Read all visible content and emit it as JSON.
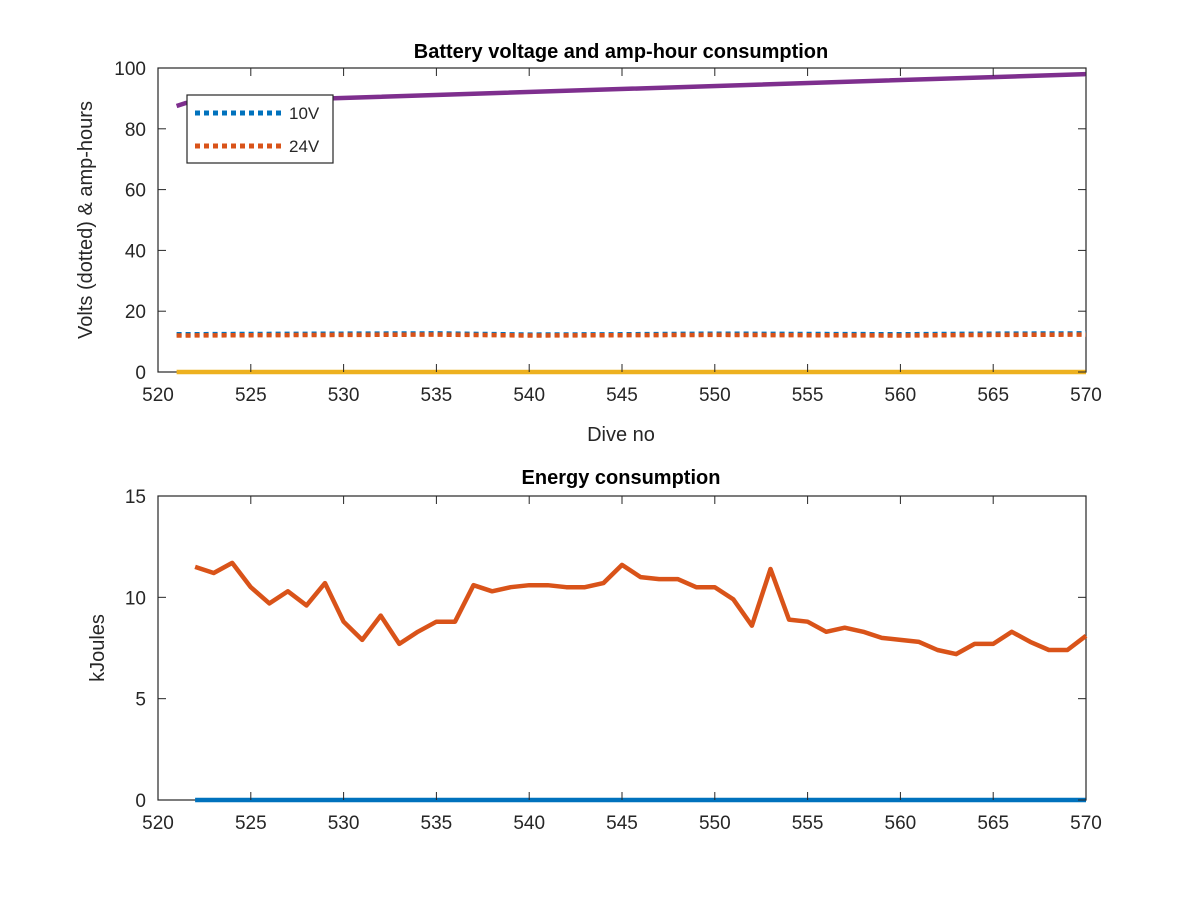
{
  "chart_data": [
    {
      "type": "line",
      "title": "Battery voltage and amp-hour consumption",
      "xlabel": "Dive no",
      "ylabel": "Volts (dotted) & amp-hours",
      "xlim": [
        520,
        570
      ],
      "ylim": [
        0,
        100
      ],
      "xticks": [
        520,
        525,
        530,
        535,
        540,
        545,
        550,
        555,
        560,
        565,
        570
      ],
      "yticks": [
        0,
        20,
        40,
        60,
        80,
        100
      ],
      "grid": false,
      "legend": {
        "placement": "top-left",
        "entries": [
          "10V",
          "24V"
        ]
      },
      "series": [
        {
          "name": "10V",
          "style": "dotted",
          "color": "#0072BD",
          "x": [
            521,
            525,
            530,
            535,
            540,
            545,
            550,
            555,
            560,
            565,
            570
          ],
          "y": [
            12.4,
            12.5,
            12.6,
            12.7,
            12.3,
            12.4,
            12.6,
            12.5,
            12.4,
            12.6,
            12.7
          ]
        },
        {
          "name": "24V",
          "style": "dotted",
          "color": "#D95319",
          "x": [
            521,
            525,
            530,
            535,
            540,
            545,
            550,
            555,
            560,
            565,
            570
          ],
          "y": [
            12.0,
            12.1,
            12.2,
            12.3,
            12.0,
            12.1,
            12.2,
            12.1,
            12.0,
            12.2,
            12.3
          ]
        },
        {
          "style": "solid",
          "color": "#7E2F8E",
          "x": [
            521,
            521.5,
            570
          ],
          "y": [
            87.5,
            88.5,
            98.0
          ]
        },
        {
          "style": "solid",
          "color": "#EDB120",
          "x": [
            521,
            570
          ],
          "y": [
            0,
            0
          ]
        }
      ]
    },
    {
      "type": "line",
      "title": "Energy consumption",
      "xlabel": "",
      "ylabel": "kJoules",
      "xlim": [
        520,
        570
      ],
      "ylim": [
        0,
        15
      ],
      "xticks": [
        520,
        525,
        530,
        535,
        540,
        545,
        550,
        555,
        560,
        565,
        570
      ],
      "yticks": [
        0,
        5,
        10,
        15
      ],
      "grid": false,
      "series": [
        {
          "style": "solid",
          "color": "#0072BD",
          "x": [
            522,
            570
          ],
          "y": [
            0,
            0
          ]
        },
        {
          "style": "solid",
          "color": "#D95319",
          "x": [
            522,
            523,
            524,
            525,
            526,
            527,
            528,
            529,
            530,
            531,
            532,
            533,
            534,
            535,
            536,
            537,
            538,
            539,
            540,
            541,
            542,
            543,
            544,
            545,
            546,
            547,
            548,
            549,
            550,
            551,
            552,
            553,
            554,
            555,
            556,
            557,
            558,
            559,
            560,
            561,
            562,
            563,
            564,
            565,
            566,
            567,
            568,
            569,
            570
          ],
          "y": [
            11.5,
            11.2,
            11.7,
            10.5,
            9.7,
            10.3,
            9.6,
            10.7,
            8.8,
            7.9,
            9.1,
            7.7,
            8.3,
            8.8,
            8.8,
            10.6,
            10.3,
            10.5,
            10.6,
            10.6,
            10.5,
            10.5,
            10.7,
            11.6,
            11.0,
            10.9,
            10.9,
            10.5,
            10.5,
            9.9,
            8.6,
            11.4,
            8.9,
            8.8,
            8.3,
            8.5,
            8.3,
            8.0,
            7.9,
            7.8,
            7.4,
            7.2,
            7.7,
            7.7,
            8.3,
            7.8,
            7.4,
            7.4,
            8.1
          ]
        }
      ]
    }
  ]
}
